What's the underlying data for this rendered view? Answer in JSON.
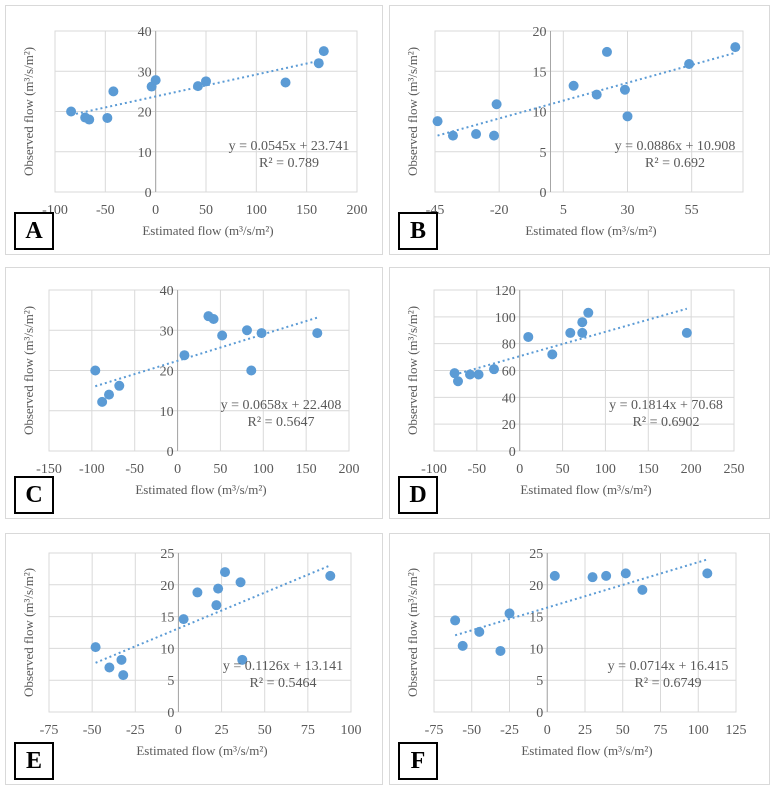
{
  "chart_data": [
    {
      "panel": "A",
      "type": "scatter",
      "xlabel": "Estimated flow (m³/s/m²)",
      "ylabel": "Observed flow (m³/s/m²)",
      "xlim": [
        -100,
        200
      ],
      "ylim": [
        0,
        40
      ],
      "xticks": [
        "-100",
        "-50",
        "0",
        "50",
        "100",
        "150",
        "200"
      ],
      "yticks": [
        "0",
        "10",
        "20",
        "30",
        "40"
      ],
      "grid": true,
      "trendline": {
        "slope": 0.0545,
        "intercept": 23.741,
        "style": "dotted linear"
      },
      "equation": "y = 0.0545x + 23.741",
      "r2": "R² = 0.789",
      "x": [
        -84,
        -70,
        -66,
        -48,
        -42,
        -4,
        0,
        42,
        50,
        129,
        162,
        167
      ],
      "y": [
        20,
        18.5,
        18,
        18.4,
        25,
        26.2,
        27.8,
        26.3,
        27.5,
        27.2,
        32,
        35
      ]
    },
    {
      "panel": "B",
      "type": "scatter",
      "xlabel": "Estimated flow (m³/s/m²)",
      "ylabel": "Observed flow (m³/s/m²)",
      "xlim": [
        -45,
        75
      ],
      "ylim": [
        0,
        20
      ],
      "xticks": [
        "-45",
        "-20",
        "5",
        "30",
        "55"
      ],
      "yticks": [
        "0",
        "5",
        "10",
        "15",
        "20"
      ],
      "grid": true,
      "trendline": {
        "slope": 0.0886,
        "intercept": 10.908,
        "style": "dotted linear"
      },
      "equation": "y = 0.0886x + 10.908",
      "r2": "R² = 0.692",
      "x": [
        -44,
        -38,
        -29,
        -22,
        -21,
        9,
        18,
        22,
        29,
        30,
        54,
        72
      ],
      "y": [
        8.8,
        7,
        7.2,
        7,
        10.9,
        13.2,
        12.1,
        17.4,
        12.7,
        9.4,
        15.9,
        18
      ]
    },
    {
      "panel": "C",
      "type": "scatter",
      "xlabel": "Estimated flow (m³/s/m²)",
      "ylabel": "Observed flow (m³/s/m²)",
      "xlim": [
        -150,
        200
      ],
      "ylim": [
        0,
        40
      ],
      "xticks": [
        "-150",
        "-100",
        "-50",
        "0",
        "50",
        "100",
        "150",
        "200"
      ],
      "yticks": [
        "0",
        "10",
        "20",
        "30",
        "40"
      ],
      "grid": true,
      "trendline": {
        "slope": 0.0658,
        "intercept": 22.408,
        "style": "dotted linear"
      },
      "equation": "y = 0.0658x + 22.408",
      "r2": "R² = 0.5647",
      "x": [
        -96,
        -88,
        -80,
        -68,
        8,
        36,
        42,
        52,
        81,
        86,
        98,
        163
      ],
      "y": [
        20,
        12.2,
        14,
        16.2,
        23.8,
        33.5,
        32.8,
        28.7,
        30,
        20,
        29.3,
        29.3
      ]
    },
    {
      "panel": "D",
      "type": "scatter",
      "xlabel": "Estimated flow (m³/s/m²)",
      "ylabel": "Observed flow (m³/s/m²)",
      "xlim": [
        -100,
        250
      ],
      "ylim": [
        0,
        120
      ],
      "xticks": [
        "-100",
        "-50",
        "0",
        "50",
        "100",
        "150",
        "200",
        "250"
      ],
      "yticks": [
        "0",
        "20",
        "40",
        "60",
        "80",
        "100",
        "120"
      ],
      "grid": true,
      "trendline": {
        "slope": 0.1814,
        "intercept": 70.68,
        "style": "dotted linear"
      },
      "equation": "y = 0.1814x + 70.68",
      "r2": "R² = 0.6902",
      "x": [
        -76,
        -72,
        -58,
        -48,
        -30,
        10,
        38,
        59,
        73,
        73,
        80,
        195
      ],
      "y": [
        58,
        52,
        57,
        57,
        61,
        85,
        72,
        88,
        96,
        88,
        103,
        88
      ]
    },
    {
      "panel": "E",
      "type": "scatter",
      "xlabel": "Estimated flow (m³/s/m²)",
      "ylabel": "Observed flow (m³/s/m²)",
      "xlim": [
        -75,
        100
      ],
      "ylim": [
        0,
        25
      ],
      "xticks": [
        "-75",
        "-50",
        "-25",
        "0",
        "25",
        "50",
        "75",
        "100"
      ],
      "yticks": [
        "0",
        "5",
        "10",
        "15",
        "20",
        "25"
      ],
      "grid": true,
      "trendline": {
        "slope": 0.1126,
        "intercept": 13.141,
        "style": "dotted linear"
      },
      "equation": "y = 0.1126x + 13.141",
      "r2": "R² = 0.5464",
      "x": [
        -48,
        -40,
        -33,
        -32,
        3,
        11,
        22,
        23,
        27,
        36,
        37,
        88
      ],
      "y": [
        10.2,
        7,
        8.2,
        5.8,
        14.6,
        18.8,
        16.8,
        19.4,
        22,
        20.4,
        8.2,
        21.4
      ]
    },
    {
      "panel": "F",
      "type": "scatter",
      "xlabel": "Estimated flow (m³/s/m²)",
      "ylabel": "Observed flow (m³/s/m²)",
      "xlim": [
        -75,
        125
      ],
      "ylim": [
        0,
        25
      ],
      "xticks": [
        "-75",
        "-50",
        "-25",
        "0",
        "25",
        "50",
        "75",
        "100",
        "125"
      ],
      "yticks": [
        "0",
        "5",
        "10",
        "15",
        "20",
        "25"
      ],
      "grid": true,
      "trendline": {
        "slope": 0.0714,
        "intercept": 16.415,
        "style": "dotted linear"
      },
      "equation": "y = 0.0714x + 16.415",
      "r2": "R² = 0.6749",
      "x": [
        -61,
        -56,
        -45,
        -31,
        -25,
        5,
        30,
        39,
        52,
        63,
        106
      ],
      "y": [
        14.4,
        10.4,
        12.6,
        9.6,
        15.5,
        21.4,
        21.2,
        21.4,
        21.8,
        19.2,
        21.8
      ]
    }
  ],
  "colors": {
    "marker": "#5b9bd5",
    "trendline": "#5b9bd5",
    "grid": "#d9d9d9",
    "text": "#595959"
  }
}
